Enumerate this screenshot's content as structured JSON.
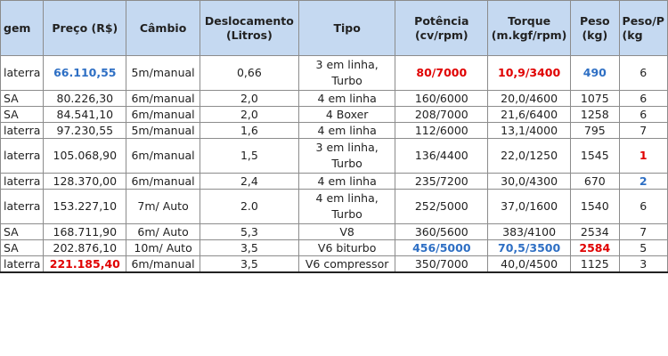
{
  "columns": [
    "gem",
    "Preço (R$)",
    "Câmbio",
    "Deslocamento (Litros)",
    "Tipo",
    "Potência (cv/rpm)",
    "Torque (m.kgf/rpm)",
    "Peso (kg)",
    "Peso/P (kg"
  ],
  "rows": [
    {
      "origem": "laterra",
      "preco": "66.110,55",
      "cambio": "5m/manual",
      "deslocamento": "0,66",
      "tipo": "3 em linha, Turbo",
      "potencia": "80/7000",
      "torque": "10,9/3400",
      "peso": "490",
      "pesopot": "6",
      "tall": true,
      "styles": {
        "preco": "blue",
        "potencia": "red",
        "torque": "red",
        "peso": "blue"
      }
    },
    {
      "origem": "SA",
      "preco": "80.226,30",
      "cambio": "6m/manual",
      "deslocamento": "2,0",
      "tipo": "4 em linha",
      "potencia": "160/6000",
      "torque": "20,0/4600",
      "peso": "1075",
      "pesopot": "6",
      "tall": false,
      "styles": {}
    },
    {
      "origem": "SA",
      "preco": "84.541,10",
      "cambio": "6m/manual",
      "deslocamento": "2,0",
      "tipo": "4 Boxer",
      "potencia": "208/7000",
      "torque": "21,6/6400",
      "peso": "1258",
      "pesopot": "6",
      "tall": false,
      "styles": {}
    },
    {
      "origem": "laterra",
      "preco": "97.230,55",
      "cambio": "5m/manual",
      "deslocamento": "1,6",
      "tipo": "4 em linha",
      "potencia": "112/6000",
      "torque": "13,1/4000",
      "peso": "795",
      "pesopot": "7",
      "tall": false,
      "styles": {}
    },
    {
      "origem": "laterra",
      "preco": "105.068,90",
      "cambio": "6m/manual",
      "deslocamento": "1,5",
      "tipo": "3 em linha, Turbo",
      "potencia": "136/4400",
      "torque": "22,0/1250",
      "peso": "1545",
      "pesopot": "1",
      "tall": true,
      "styles": {
        "pesopot": "red"
      }
    },
    {
      "origem": "laterra",
      "preco": "128.370,00",
      "cambio": "6m/manual",
      "deslocamento": "2,4",
      "tipo": "4 em linha",
      "potencia": "235/7200",
      "torque": "30,0/4300",
      "peso": "670",
      "pesopot": "2",
      "tall": false,
      "styles": {
        "pesopot": "blue"
      }
    },
    {
      "origem": "laterra",
      "preco": "153.227,10",
      "cambio": "7m/ Auto",
      "deslocamento": "2.0",
      "tipo": "4 em linha, Turbo",
      "potencia": "252/5000",
      "torque": "37,0/1600",
      "peso": "1540",
      "pesopot": "6",
      "tall": true,
      "styles": {}
    },
    {
      "origem": "SA",
      "preco": "168.711,90",
      "cambio": "6m/ Auto",
      "deslocamento": "5,3",
      "tipo": "V8",
      "potencia": "360/5600",
      "torque": "383/4100",
      "peso": "2534",
      "pesopot": "7",
      "tall": false,
      "styles": {}
    },
    {
      "origem": "SA",
      "preco": "202.876,10",
      "cambio": "10m/ Auto",
      "deslocamento": "3,5",
      "tipo": "V6 biturbo",
      "potencia": "456/5000",
      "torque": "70,5/3500",
      "peso": "2584",
      "pesopot": "5",
      "tall": false,
      "styles": {
        "potencia": "blue",
        "torque": "blue",
        "peso": "red"
      }
    },
    {
      "origem": "laterra",
      "preco": "221.185,40",
      "cambio": "6m/manual",
      "deslocamento": "3,5",
      "tipo": "V6 compressor",
      "potencia": "350/7000",
      "torque": "40,0/4500",
      "peso": "1125",
      "pesopot": "3",
      "tall": false,
      "styles": {
        "preco": "red"
      }
    }
  ]
}
